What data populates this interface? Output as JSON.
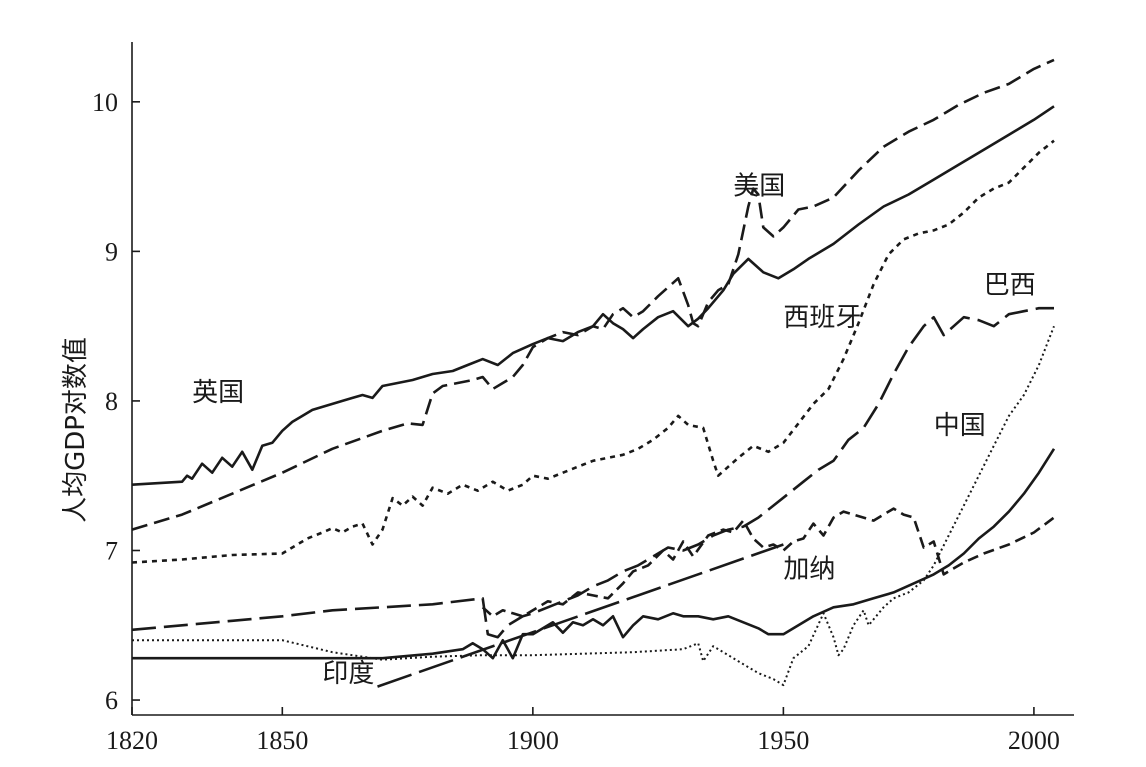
{
  "chart_data": {
    "type": "line",
    "title": "",
    "xlabel": "",
    "ylabel": "人均GDP对数值",
    "xlim": [
      1820,
      2008
    ],
    "ylim": [
      5.9,
      10.4
    ],
    "xticks": [
      1820,
      1850,
      1900,
      1950,
      2000
    ],
    "yticks": [
      6,
      7,
      8,
      9,
      10
    ],
    "grid": false,
    "legend": "none",
    "series": [
      {
        "name": "英国",
        "style": "solid",
        "width": 2.6,
        "label": {
          "x": 1832,
          "y": 8.0
        },
        "x": [
          1820,
          1830,
          1831,
          1832,
          1834,
          1836,
          1838,
          1840,
          1842,
          1844,
          1846,
          1848,
          1850,
          1852,
          1854,
          1856,
          1858,
          1860,
          1862,
          1864,
          1866,
          1868,
          1870,
          1873,
          1876,
          1880,
          1884,
          1887,
          1890,
          1893,
          1896,
          1900,
          1903,
          1906,
          1909,
          1912,
          1914,
          1916,
          1918,
          1920,
          1922,
          1925,
          1928,
          1931,
          1933,
          1935,
          1938,
          1940,
          1943,
          1946,
          1949,
          1952,
          1955,
          1960,
          1965,
          1970,
          1975,
          1980,
          1985,
          1990,
          1995,
          2000,
          2004
        ],
        "values": [
          7.44,
          7.46,
          7.5,
          7.48,
          7.58,
          7.52,
          7.62,
          7.56,
          7.66,
          7.54,
          7.7,
          7.72,
          7.8,
          7.86,
          7.9,
          7.94,
          7.96,
          7.98,
          8.0,
          8.02,
          8.04,
          8.02,
          8.1,
          8.12,
          8.14,
          8.18,
          8.2,
          8.24,
          8.28,
          8.24,
          8.32,
          8.38,
          8.42,
          8.4,
          8.46,
          8.5,
          8.58,
          8.52,
          8.48,
          8.42,
          8.48,
          8.56,
          8.6,
          8.5,
          8.55,
          8.62,
          8.74,
          8.85,
          8.95,
          8.86,
          8.82,
          8.88,
          8.95,
          9.05,
          9.18,
          9.3,
          9.38,
          9.48,
          9.58,
          9.68,
          9.78,
          9.88,
          9.97
        ]
      },
      {
        "name": "美国",
        "style": "dash-medium",
        "width": 2.6,
        "label": {
          "x": 1940,
          "y": 9.38
        },
        "x": [
          1820,
          1830,
          1840,
          1850,
          1860,
          1870,
          1875,
          1878,
          1880,
          1882,
          1885,
          1888,
          1890,
          1892,
          1894,
          1896,
          1898,
          1900,
          1903,
          1906,
          1909,
          1912,
          1914,
          1916,
          1918,
          1920,
          1922,
          1925,
          1927,
          1929,
          1931,
          1932,
          1933,
          1935,
          1937,
          1939,
          1941,
          1943,
          1944,
          1945,
          1946,
          1948,
          1950,
          1953,
          1956,
          1960,
          1965,
          1970,
          1975,
          1980,
          1985,
          1990,
          1995,
          2000,
          2004
        ],
        "values": [
          7.14,
          7.24,
          7.38,
          7.52,
          7.68,
          7.8,
          7.85,
          7.84,
          8.05,
          8.1,
          8.12,
          8.14,
          8.16,
          8.08,
          8.12,
          8.16,
          8.24,
          8.36,
          8.42,
          8.46,
          8.44,
          8.5,
          8.48,
          8.58,
          8.62,
          8.56,
          8.6,
          8.7,
          8.76,
          8.82,
          8.64,
          8.52,
          8.5,
          8.66,
          8.74,
          8.78,
          8.98,
          9.3,
          9.42,
          9.38,
          9.16,
          9.1,
          9.16,
          9.28,
          9.3,
          9.36,
          9.54,
          9.7,
          9.8,
          9.88,
          9.98,
          10.06,
          10.12,
          10.22,
          10.28
        ]
      },
      {
        "name": "西班牙",
        "style": "dot",
        "width": 2.6,
        "label": {
          "x": 1950,
          "y": 8.5
        },
        "x": [
          1820,
          1830,
          1840,
          1850,
          1852,
          1855,
          1858,
          1860,
          1862,
          1864,
          1866,
          1868,
          1870,
          1872,
          1874,
          1876,
          1878,
          1880,
          1883,
          1886,
          1889,
          1892,
          1895,
          1898,
          1900,
          1903,
          1906,
          1909,
          1912,
          1915,
          1918,
          1921,
          1924,
          1927,
          1929,
          1931,
          1934,
          1936,
          1937,
          1939,
          1941,
          1944,
          1947,
          1950,
          1953,
          1956,
          1959,
          1962,
          1965,
          1968,
          1971,
          1974,
          1977,
          1980,
          1983,
          1986,
          1989,
          1992,
          1995,
          1998,
          2001,
          2004
        ],
        "values": [
          6.92,
          6.94,
          6.97,
          6.98,
          7.02,
          7.08,
          7.12,
          7.15,
          7.12,
          7.16,
          7.18,
          7.04,
          7.14,
          7.35,
          7.3,
          7.36,
          7.3,
          7.42,
          7.38,
          7.44,
          7.4,
          7.46,
          7.4,
          7.44,
          7.5,
          7.48,
          7.52,
          7.56,
          7.6,
          7.62,
          7.64,
          7.68,
          7.74,
          7.82,
          7.9,
          7.84,
          7.82,
          7.6,
          7.5,
          7.56,
          7.62,
          7.7,
          7.66,
          7.72,
          7.85,
          7.98,
          8.08,
          8.28,
          8.52,
          8.78,
          8.98,
          9.08,
          9.12,
          9.14,
          9.18,
          9.26,
          9.36,
          9.42,
          9.46,
          9.56,
          9.66,
          9.74
        ]
      },
      {
        "name": "巴西",
        "style": "dash-long",
        "width": 2.6,
        "label": {
          "x": 1990,
          "y": 8.72
        },
        "x": [
          1820,
          1830,
          1840,
          1850,
          1860,
          1870,
          1880,
          1890,
          1891,
          1893,
          1895,
          1898,
          1900,
          1903,
          1906,
          1909,
          1912,
          1915,
          1918,
          1921,
          1924,
          1927,
          1930,
          1933,
          1936,
          1939,
          1942,
          1945,
          1948,
          1951,
          1954,
          1957,
          1960,
          1963,
          1966,
          1969,
          1972,
          1975,
          1978,
          1980,
          1982,
          1984,
          1986,
          1989,
          1992,
          1995,
          1998,
          2001,
          2004
        ],
        "values": [
          6.47,
          6.5,
          6.53,
          6.56,
          6.6,
          6.62,
          6.64,
          6.68,
          6.44,
          6.42,
          6.5,
          6.56,
          6.58,
          6.62,
          6.66,
          6.7,
          6.76,
          6.8,
          6.86,
          6.9,
          6.96,
          7.02,
          7.0,
          7.04,
          7.1,
          7.14,
          7.16,
          7.22,
          7.3,
          7.38,
          7.46,
          7.54,
          7.6,
          7.74,
          7.82,
          7.98,
          8.18,
          8.36,
          8.5,
          8.56,
          8.44,
          8.5,
          8.56,
          8.54,
          8.5,
          8.58,
          8.6,
          8.62,
          8.62
        ]
      },
      {
        "name": "中国",
        "style": "dot-fine",
        "width": 2.0,
        "label": {
          "x": 1980,
          "y": 7.78
        },
        "x": [
          1820,
          1830,
          1840,
          1850,
          1860,
          1870,
          1880,
          1890,
          1900,
          1910,
          1920,
          1930,
          1933,
          1934,
          1936,
          1939,
          1942,
          1945,
          1948,
          1950,
          1952,
          1955,
          1958,
          1960,
          1961,
          1962,
          1964,
          1966,
          1967,
          1968,
          1970,
          1972,
          1975,
          1978,
          1980,
          1983,
          1986,
          1989,
          1992,
          1995,
          1998,
          2001,
          2004
        ],
        "values": [
          6.4,
          6.4,
          6.4,
          6.4,
          6.32,
          6.27,
          6.29,
          6.3,
          6.3,
          6.31,
          6.32,
          6.34,
          6.38,
          6.26,
          6.36,
          6.3,
          6.24,
          6.18,
          6.14,
          6.1,
          6.28,
          6.36,
          6.58,
          6.42,
          6.3,
          6.34,
          6.5,
          6.6,
          6.5,
          6.54,
          6.62,
          6.68,
          6.72,
          6.8,
          6.9,
          7.1,
          7.3,
          7.5,
          7.7,
          7.9,
          8.04,
          8.24,
          8.5
        ]
      },
      {
        "name": "加纳",
        "style": "dash-short",
        "width": 2.6,
        "label": {
          "x": 1950,
          "y": 6.82
        },
        "x": [
          1890,
          1892,
          1894,
          1896,
          1898,
          1900,
          1903,
          1906,
          1909,
          1912,
          1915,
          1918,
          1920,
          1923,
          1926,
          1928,
          1930,
          1932,
          1935,
          1938,
          1940,
          1942,
          1944,
          1946,
          1948,
          1950,
          1952,
          1954,
          1956,
          1958,
          1960,
          1962,
          1964,
          1966,
          1968,
          1970,
          1972,
          1974,
          1976,
          1978,
          1980,
          1982,
          1984,
          1986,
          1990,
          1995,
          2000,
          2004
        ],
        "values": [
          6.62,
          6.56,
          6.6,
          6.58,
          6.56,
          6.6,
          6.66,
          6.64,
          6.72,
          6.7,
          6.68,
          6.78,
          6.86,
          6.9,
          7.0,
          6.94,
          7.06,
          6.96,
          7.1,
          7.14,
          7.12,
          7.2,
          7.08,
          7.02,
          7.04,
          7.0,
          7.06,
          7.08,
          7.18,
          7.1,
          7.22,
          7.26,
          7.24,
          7.22,
          7.2,
          7.24,
          7.28,
          7.24,
          7.22,
          7.02,
          7.06,
          6.84,
          6.88,
          6.92,
          6.98,
          7.04,
          7.12,
          7.22
        ]
      },
      {
        "name": "印度",
        "style": "solid",
        "width": 2.6,
        "label": {
          "x": 1858,
          "y": 6.12
        },
        "x": [
          1820,
          1840,
          1860,
          1870,
          1880,
          1884,
          1886,
          1888,
          1890,
          1892,
          1894,
          1896,
          1898,
          1900,
          1902,
          1904,
          1906,
          1908,
          1910,
          1912,
          1914,
          1916,
          1918,
          1920,
          1922,
          1925,
          1928,
          1930,
          1933,
          1936,
          1939,
          1942,
          1945,
          1947,
          1950,
          1953,
          1956,
          1960,
          1964,
          1968,
          1972,
          1976,
          1980,
          1983,
          1986,
          1989,
          1992,
          1995,
          1998,
          2001,
          2004
        ],
        "values": [
          6.28,
          6.28,
          6.28,
          6.28,
          6.31,
          6.33,
          6.34,
          6.38,
          6.34,
          6.28,
          6.4,
          6.28,
          6.44,
          6.44,
          6.48,
          6.52,
          6.45,
          6.52,
          6.5,
          6.54,
          6.5,
          6.56,
          6.42,
          6.5,
          6.56,
          6.54,
          6.58,
          6.56,
          6.56,
          6.54,
          6.56,
          6.52,
          6.48,
          6.44,
          6.44,
          6.5,
          6.56,
          6.62,
          6.64,
          6.68,
          6.72,
          6.78,
          6.84,
          6.9,
          6.98,
          7.08,
          7.16,
          7.26,
          7.38,
          7.52,
          7.68
        ]
      },
      {
        "name": "",
        "style": "dash-xlong",
        "width": 2.6,
        "x": [
          1869,
          1950
        ],
        "values": [
          6.09,
          7.04
        ]
      }
    ]
  }
}
